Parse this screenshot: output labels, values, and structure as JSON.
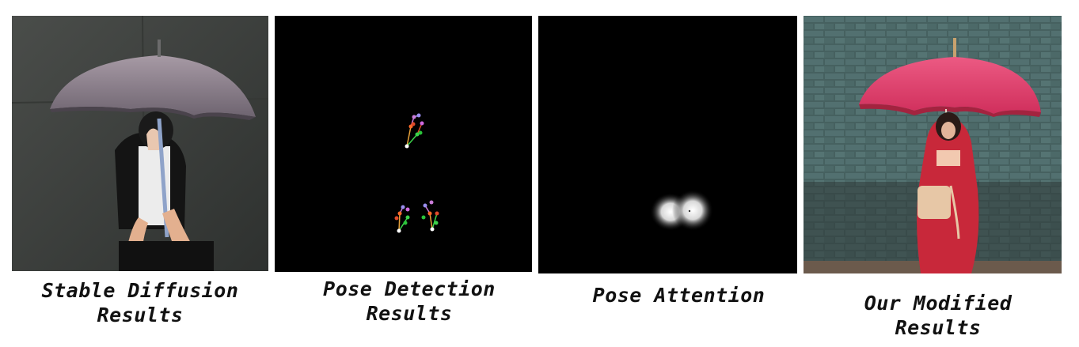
{
  "panels": [
    {
      "id": "stable-diffusion",
      "caption_lines": [
        "Stable Diffusion",
        "Results"
      ]
    },
    {
      "id": "pose-detection",
      "caption_lines": [
        "Pose Detection",
        "Results"
      ]
    },
    {
      "id": "pose-attention",
      "caption_lines": [
        "Pose Attention"
      ]
    },
    {
      "id": "modified",
      "caption_lines": [
        "Our Modified",
        "Results"
      ]
    }
  ],
  "colors": {
    "concrete_wall": "#3d413e",
    "grey_umbrella": "#8a7f8a",
    "black_background": "#000000",
    "teal_brick_wall": "#3f5a58",
    "pink_umbrella": "#e0406a",
    "red_coat": "#c8283a"
  }
}
